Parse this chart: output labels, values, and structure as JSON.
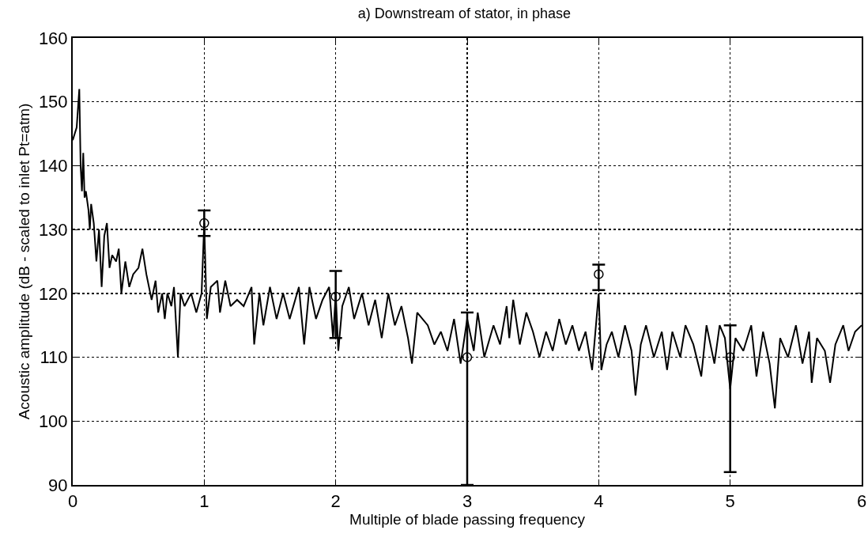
{
  "chart_data": {
    "type": "line",
    "title": "a) Downstream of stator, in phase",
    "xlabel": "Multiple of blade passing frequency",
    "ylabel": "Acoustic amplitude (dB - scaled to inlet Pt=atm)",
    "xlim": [
      0,
      6
    ],
    "xticks": [
      0,
      1,
      2,
      3,
      4,
      5,
      6
    ],
    "ylim": [
      90,
      160
    ],
    "yticks": [
      90,
      100,
      110,
      120,
      130,
      140,
      150,
      160
    ],
    "grid": true,
    "line_style": "solid",
    "series": [
      {
        "color": "#000000",
        "marker": "none",
        "x": [
          0,
          0.03,
          0.05,
          0.06,
          0.07,
          0.08,
          0.09,
          0.1,
          0.12,
          0.13,
          0.14,
          0.16,
          0.18,
          0.2,
          0.22,
          0.24,
          0.26,
          0.28,
          0.3,
          0.33,
          0.35,
          0.37,
          0.4,
          0.43,
          0.46,
          0.5,
          0.53,
          0.56,
          0.6,
          0.63,
          0.65,
          0.68,
          0.7,
          0.72,
          0.75,
          0.77,
          0.8,
          0.82,
          0.85,
          0.9,
          0.94,
          0.98,
          1.0,
          1.02,
          1.05,
          1.1,
          1.12,
          1.16,
          1.2,
          1.25,
          1.3,
          1.36,
          1.38,
          1.42,
          1.45,
          1.5,
          1.55,
          1.6,
          1.65,
          1.72,
          1.76,
          1.8,
          1.85,
          1.9,
          1.95,
          1.98,
          2.0,
          2.02,
          2.05,
          2.1,
          2.14,
          2.2,
          2.25,
          2.3,
          2.35,
          2.4,
          2.45,
          2.5,
          2.55,
          2.58,
          2.62,
          2.7,
          2.75,
          2.8,
          2.85,
          2.9,
          2.95,
          3.0,
          3.05,
          3.08,
          3.13,
          3.2,
          3.25,
          3.3,
          3.32,
          3.35,
          3.4,
          3.45,
          3.5,
          3.55,
          3.6,
          3.65,
          3.7,
          3.75,
          3.8,
          3.85,
          3.9,
          3.95,
          4.0,
          4.02,
          4.06,
          4.1,
          4.15,
          4.2,
          4.25,
          4.28,
          4.32,
          4.36,
          4.42,
          4.48,
          4.52,
          4.56,
          4.62,
          4.66,
          4.72,
          4.78,
          4.82,
          4.88,
          4.92,
          4.96,
          5.0,
          5.04,
          5.1,
          5.16,
          5.2,
          5.25,
          5.3,
          5.34,
          5.38,
          5.44,
          5.5,
          5.55,
          5.6,
          5.62,
          5.66,
          5.72,
          5.76,
          5.8,
          5.86,
          5.9,
          5.95,
          6.0
        ],
        "values": [
          144,
          146,
          152,
          140,
          136,
          142,
          135,
          136,
          133,
          130,
          134,
          131,
          125,
          130,
          121,
          129,
          131,
          124,
          126,
          125,
          127,
          120,
          125,
          121,
          123,
          124,
          127,
          123,
          119,
          122,
          117,
          120,
          116,
          120,
          118,
          121,
          110,
          120,
          118,
          120,
          117,
          120,
          131,
          116,
          121,
          122,
          117,
          122,
          118,
          119,
          118,
          121,
          112,
          120,
          115,
          121,
          116,
          120,
          116,
          121,
          112,
          121,
          116,
          119,
          121,
          113,
          120,
          111,
          118,
          121,
          116,
          120,
          115,
          119,
          113,
          120,
          115,
          118,
          113,
          109,
          117,
          115,
          112,
          114,
          111,
          116,
          109,
          116,
          111,
          117,
          110,
          115,
          112,
          118,
          113,
          119,
          112,
          117,
          114,
          110,
          114,
          111,
          116,
          112,
          115,
          111,
          114,
          108,
          120,
          108,
          112,
          114,
          110,
          115,
          111,
          104,
          112,
          115,
          110,
          114,
          108,
          114,
          110,
          115,
          112,
          107,
          115,
          109,
          115,
          113,
          105,
          113,
          111,
          115,
          107,
          114,
          109,
          102,
          113,
          110,
          115,
          109,
          114,
          106,
          113,
          111,
          106,
          112,
          115,
          111,
          114,
          115
        ]
      },
      {
        "type": "scatter",
        "color": "#000000",
        "marker": "circle",
        "x": [
          1,
          2,
          3,
          4,
          5
        ],
        "values": [
          131,
          119.5,
          110,
          123,
          110
        ],
        "errors": [
          [
            129,
            133
          ],
          [
            113,
            123.5
          ],
          [
            90,
            117
          ],
          [
            120.5,
            124.5
          ],
          [
            92,
            115
          ]
        ]
      }
    ]
  }
}
